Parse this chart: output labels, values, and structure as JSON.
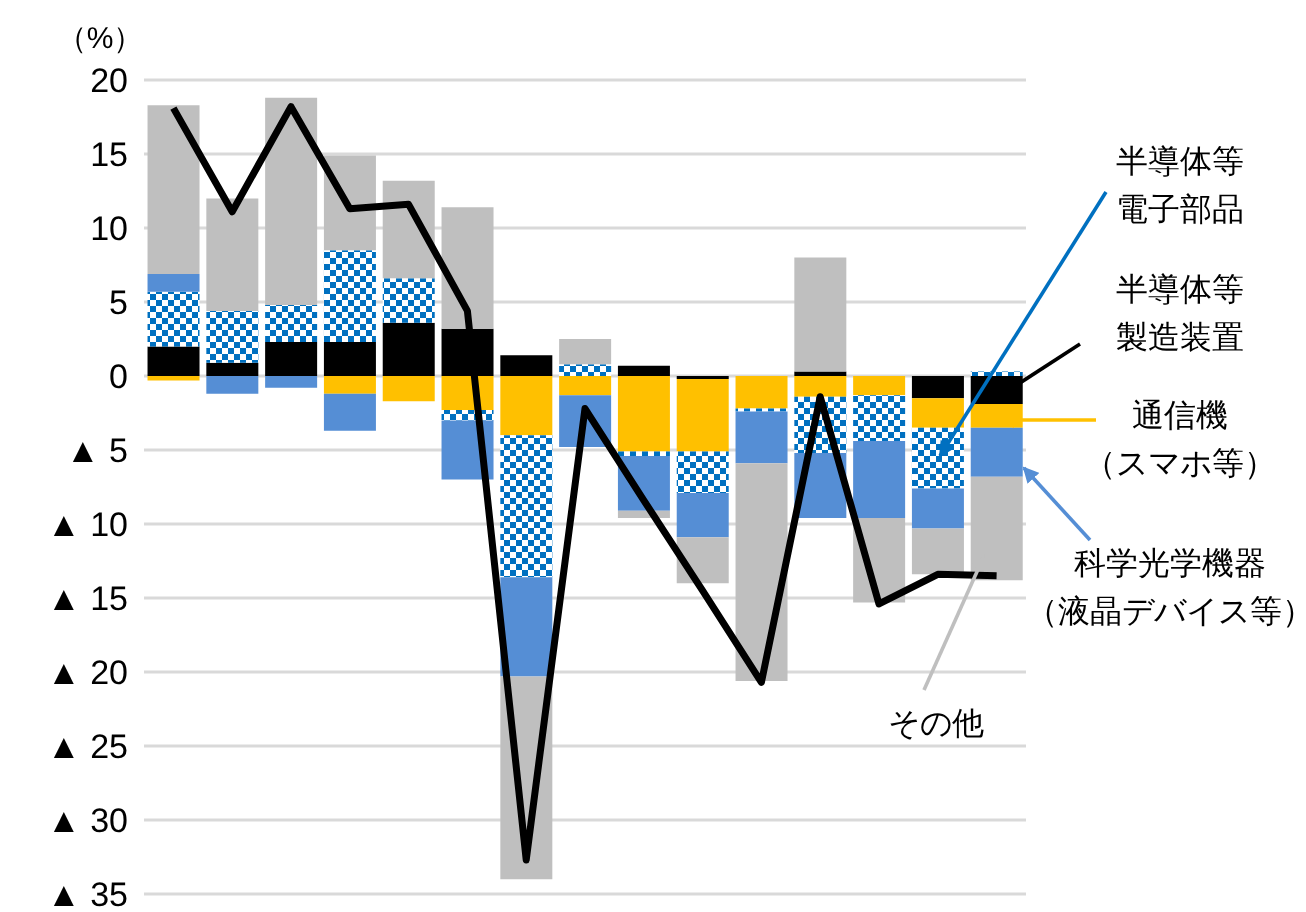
{
  "chart_data": {
    "type": "bar",
    "stacked": true,
    "ylabel": "（%）",
    "categories": [
      null,
      null,
      null,
      null,
      null,
      null,
      null,
      null,
      null,
      null,
      null,
      null,
      null,
      null,
      null
    ],
    "series": [
      {
        "name": "半導体等製造装置",
        "color": "#000000",
        "values": [
          2.0,
          0.9,
          2.3,
          2.3,
          3.6,
          3.2,
          1.4,
          0,
          0.7,
          -0.2,
          0,
          0.3,
          0,
          -1.5,
          -1.9
        ]
      },
      {
        "name": "通信機（スマホ等）",
        "color": "#ffc000",
        "values": [
          -0.3,
          0,
          0,
          -1.2,
          -1.7,
          -2.3,
          -4.0,
          -1.3,
          -5.1,
          -4.9,
          -2.2,
          -1.4,
          -1.3,
          -2.0,
          -1.6
        ]
      },
      {
        "name": "半導体等電子部品",
        "color": "#0070c0",
        "values": [
          3.7,
          3.5,
          2.5,
          6.2,
          3.0,
          -0.7,
          -9.6,
          0.8,
          -0.3,
          -2.8,
          -0.2,
          -3.8,
          -3.1,
          -4.1,
          0.3
        ]
      },
      {
        "name": "科学光学機器（液晶デバイス等）",
        "color": "#558ed5",
        "values": [
          1.2,
          -1.2,
          -0.8,
          -2.5,
          0,
          -4.0,
          -6.7,
          -3.5,
          -3.7,
          -3.0,
          -3.5,
          -4.4,
          -5.2,
          -2.7,
          -3.3
        ]
      },
      {
        "name": "その他",
        "color": "#bfbfbf",
        "values": [
          11.4,
          7.6,
          14.0,
          6.4,
          6.6,
          8.2,
          -13.7,
          1.7,
          -0.5,
          -3.1,
          -14.7,
          7.7,
          -5.7,
          -3.1,
          -7.0
        ]
      },
      {
        "type": "line",
        "color": "#000000",
        "values": [
          18.1,
          11.1,
          18.2,
          11.3,
          11.6,
          4.4,
          -32.7,
          -2.2,
          -8.4,
          -14.5,
          -20.7,
          -1.4,
          -15.4,
          -13.4,
          -13.5
        ]
      }
    ],
    "ylim": [
      -35,
      20
    ],
    "yticks": [
      20,
      15,
      10,
      5,
      0,
      {
        "value": -5,
        "label": "▲ 5"
      },
      {
        "value": -10,
        "label": "▲ 10"
      },
      {
        "value": -15,
        "label": "▲ 15"
      },
      {
        "value": -20,
        "label": "▲ 20"
      },
      {
        "value": -25,
        "label": "▲ 25"
      },
      {
        "value": -30,
        "label": "▲ 30"
      },
      {
        "value": -35,
        "label": "▲ 35"
      }
    ],
    "grid": "y"
  }
}
